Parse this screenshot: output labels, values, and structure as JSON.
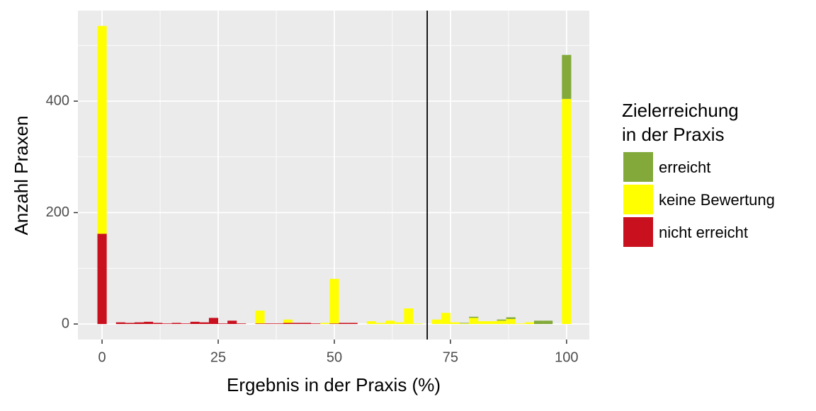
{
  "chart_data": {
    "type": "stacked_histogram",
    "x_label": "Ergebnis in der Praxis (%)",
    "y_label": "Anzahl Praxen",
    "legend_title": [
      "Zielerreichung",
      "in der Praxis"
    ],
    "bins": [
      -1,
      1,
      3,
      5,
      7,
      9,
      11,
      13,
      15,
      17,
      19,
      21,
      23,
      25,
      27,
      29,
      31,
      33,
      35,
      37,
      39,
      41,
      43,
      45,
      47,
      49,
      51,
      53,
      55,
      57,
      59,
      61,
      63,
      65,
      67,
      69,
      71,
      73,
      75,
      77,
      79,
      81,
      83,
      85,
      87,
      89,
      91,
      93,
      95,
      97,
      99,
      101
    ],
    "series": [
      {
        "name": "erreicht",
        "color": "#82a93a",
        "values": [
          0,
          0,
          0,
          0,
          0,
          0,
          0,
          0,
          0,
          0,
          0,
          0,
          0,
          0,
          0,
          0,
          0,
          0,
          0,
          0,
          0,
          0,
          0,
          0,
          0,
          0,
          0,
          0,
          0,
          0,
          0,
          0,
          0,
          0,
          0,
          0,
          0,
          0,
          0,
          1,
          2,
          0,
          0,
          2,
          3,
          0,
          0,
          6,
          6,
          0,
          79
        ]
      },
      {
        "name": "keine Bewertung",
        "color": "#ffff00",
        "values": [
          373,
          0,
          0,
          0,
          0,
          0,
          0,
          0,
          0,
          0,
          0,
          0,
          0,
          0,
          0,
          0,
          0,
          23,
          0,
          0,
          6,
          0,
          0,
          0,
          2,
          80,
          0,
          0,
          0,
          5,
          2,
          6,
          3,
          28,
          1,
          0,
          8,
          20,
          3,
          1,
          11,
          5,
          5,
          6,
          9,
          1,
          3,
          0,
          0,
          0,
          404
        ]
      },
      {
        "name": "nicht erreicht",
        "color": "#c8101e",
        "values": [
          162,
          0,
          3,
          2,
          3,
          4,
          2,
          1,
          2,
          1,
          4,
          3,
          11,
          1,
          6,
          1,
          0,
          1,
          1,
          1,
          2,
          2,
          2,
          1,
          0,
          1,
          2,
          2,
          0,
          0,
          0,
          0,
          0,
          0,
          0,
          0,
          0,
          0,
          0,
          0,
          0,
          0,
          0,
          0,
          0,
          0,
          0,
          0,
          0,
          0,
          0
        ]
      }
    ],
    "vline": 70,
    "xlim": [
      -5.2,
      104.9
    ],
    "ylim": [
      -27.9,
      562.5
    ],
    "xticks": [
      0,
      25,
      50,
      75,
      100
    ],
    "yticks": [
      0,
      200,
      400
    ],
    "x_minor_grid": [
      12.5,
      37.5,
      62.5,
      87.5
    ],
    "y_minor_grid": [
      100,
      300,
      500
    ],
    "grid": true
  }
}
